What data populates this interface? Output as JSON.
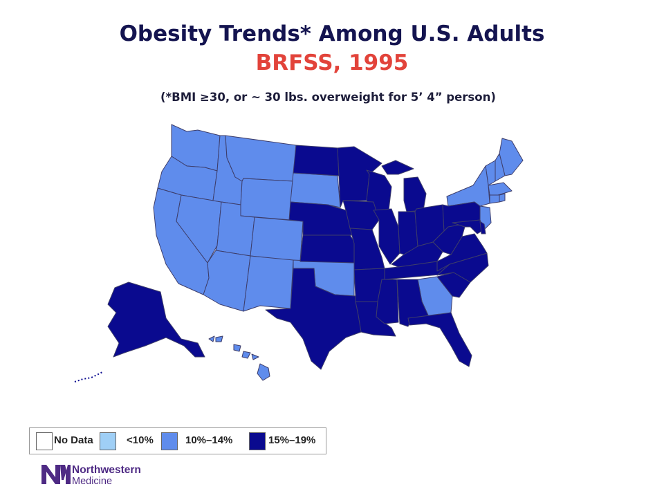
{
  "slide": {
    "title": "Obesity Trends* Among U.S. Adults",
    "subtitle": "BRFSS, 1995",
    "note": "(*BMI ≥30, or ~ 30 lbs. overweight for 5’ 4” person)"
  },
  "legend": {
    "items": [
      {
        "label": "No Data",
        "color": "#ffffff"
      },
      {
        "label": "<10%",
        "color": "#9fcff6"
      },
      {
        "label": "10%–14%",
        "color": "#5f8cec"
      },
      {
        "label": "15%–19%",
        "color": "#0a0a8f"
      }
    ]
  },
  "map": {
    "state_fills": {
      "10%–14%": [
        "WA",
        "OR",
        "CA",
        "NV",
        "ID",
        "MT",
        "WY",
        "UT",
        "CO",
        "AZ",
        "NM",
        "SD",
        "OK",
        "GA",
        "ME",
        "NH",
        "VT",
        "NY",
        "MA",
        "CT",
        "RI",
        "NJ",
        "HI"
      ],
      "15%–19%": [
        "ND",
        "MN",
        "WI",
        "MI",
        "IA",
        "NE",
        "KS",
        "MO",
        "IL",
        "IN",
        "OH",
        "KY",
        "TN",
        "AR",
        "LA",
        "TX",
        "MS",
        "AL",
        "FL",
        "SC",
        "NC",
        "VA",
        "WV",
        "PA",
        "MD",
        "DE",
        "AK"
      ]
    }
  },
  "branding": {
    "line1": "Northwestern",
    "line2": "Medicine",
    "mark": "NM",
    "color": "#4e2a84"
  }
}
